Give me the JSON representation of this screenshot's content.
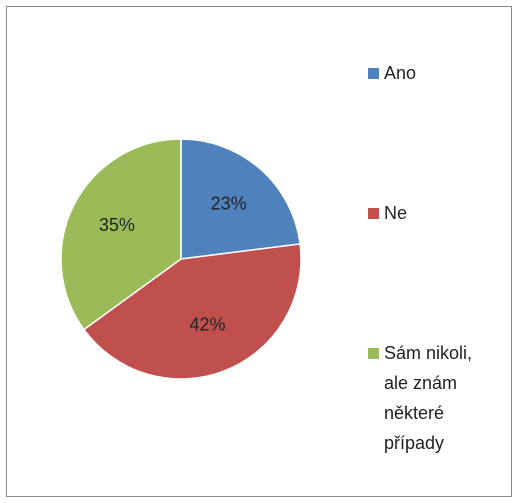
{
  "chart_data": {
    "type": "pie",
    "categories": [
      "Ano",
      "Ne",
      "Sám nikoli, ale znám některé případy"
    ],
    "values": [
      23,
      42,
      35
    ],
    "value_labels": [
      "23%",
      "42%",
      "35%"
    ],
    "colors": [
      "#4f81bd",
      "#c0504d",
      "#9bbb59"
    ],
    "legend": "right"
  }
}
